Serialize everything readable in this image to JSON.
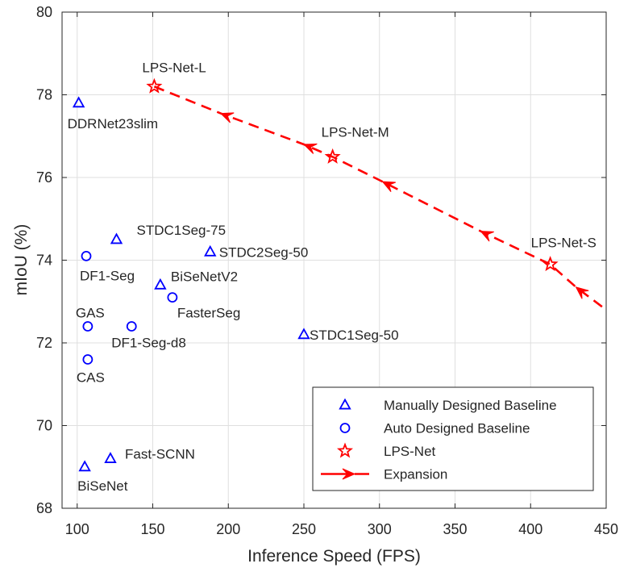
{
  "chart_data": {
    "type": "scatter",
    "title": "",
    "xlabel": "Inference Speed (FPS)",
    "ylabel": "mIoU (%)",
    "xlim": [
      90,
      450
    ],
    "ylim": [
      68,
      80
    ],
    "xticks": [
      100,
      150,
      200,
      250,
      300,
      350,
      400,
      450
    ],
    "yticks": [
      68,
      70,
      72,
      74,
      76,
      78,
      80
    ],
    "grid": true,
    "legend_position": "bottom-right",
    "colors": {
      "blue": "#0000ff",
      "red": "#ff0000"
    },
    "series": [
      {
        "name": "Manually Designed Baseline",
        "marker": "triangle",
        "color": "#0000ff",
        "points": [
          {
            "label": "DDRNet23slim",
            "x": 101,
            "y": 77.8
          },
          {
            "label": "STDC1Seg-75",
            "x": 126,
            "y": 74.5
          },
          {
            "label": "STDC2Seg-50",
            "x": 188,
            "y": 74.2
          },
          {
            "label": "BiSeNetV2",
            "x": 155,
            "y": 73.4
          },
          {
            "label": "STDC1Seg-50",
            "x": 250,
            "y": 72.2
          },
          {
            "label": "Fast-SCNN",
            "x": 122,
            "y": 69.2
          },
          {
            "label": "BiSeNet",
            "x": 105,
            "y": 69.0
          }
        ]
      },
      {
        "name": "Auto Designed Baseline",
        "marker": "circle",
        "color": "#0000ff",
        "points": [
          {
            "label": "DF1-Seg",
            "x": 106,
            "y": 74.1
          },
          {
            "label": "FasterSeg",
            "x": 163,
            "y": 73.1
          },
          {
            "label": "GAS",
            "x": 107,
            "y": 72.4
          },
          {
            "label": "DF1-Seg-d8",
            "x": 136,
            "y": 72.4
          },
          {
            "label": "CAS",
            "x": 107,
            "y": 71.6
          }
        ]
      },
      {
        "name": "LPS-Net",
        "marker": "star",
        "color": "#ff0000",
        "points": [
          {
            "label": "LPS-Net-L",
            "x": 151,
            "y": 78.2
          },
          {
            "label": "LPS-Net-M",
            "x": 269,
            "y": 76.5
          },
          {
            "label": "LPS-Net-S",
            "x": 413,
            "y": 73.9
          }
        ]
      },
      {
        "name": "Expansion",
        "marker": "dashed-arrow",
        "color": "#ff0000",
        "line": [
          {
            "x": 151,
            "y": 78.2
          },
          {
            "x": 195,
            "y": 77.55
          },
          {
            "x": 250,
            "y": 76.8
          },
          {
            "x": 269,
            "y": 76.5
          },
          {
            "x": 302,
            "y": 75.9
          },
          {
            "x": 367,
            "y": 74.7
          },
          {
            "x": 413,
            "y": 73.9
          },
          {
            "x": 430,
            "y": 73.35
          },
          {
            "x": 450,
            "y": 72.8
          }
        ],
        "arrows": [
          {
            "x": 195,
            "y": 77.55
          },
          {
            "x": 250,
            "y": 76.8
          },
          {
            "x": 302,
            "y": 75.9
          },
          {
            "x": 367,
            "y": 74.7
          },
          {
            "x": 430,
            "y": 73.35
          }
        ]
      }
    ]
  }
}
